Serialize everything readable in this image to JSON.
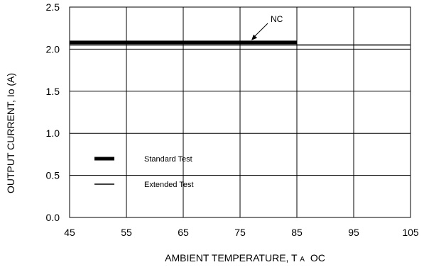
{
  "chart_data": {
    "type": "line",
    "title": "",
    "xlabel": "AMBIENT TEMPERATURE, T",
    "xlabel_subscript": "A",
    "xlabel_unit": "OC",
    "ylabel": "OUTPUT CURRENT, Io  (A)",
    "xlim": [
      45,
      105
    ],
    "ylim": [
      0.0,
      2.5
    ],
    "xticks": [
      "45",
      "55",
      "65",
      "75",
      "85",
      "95",
      "105"
    ],
    "yticks": [
      "0.0",
      "0.5",
      "1.0",
      "1.5",
      "2.0",
      "2.5"
    ],
    "grid": true,
    "legend_position": "bottom-left",
    "series": [
      {
        "name": "Standard Test",
        "x": [
          45,
          85
        ],
        "y": [
          2.08,
          2.08
        ],
        "style": "thick",
        "color": "#000000"
      },
      {
        "name": "Extended Test",
        "x": [
          45,
          105
        ],
        "y": [
          2.05,
          2.05
        ],
        "style": "thin",
        "color": "#000000"
      }
    ],
    "annotations": [
      {
        "text": "NC",
        "x": 77,
        "y": 2.08
      }
    ]
  }
}
